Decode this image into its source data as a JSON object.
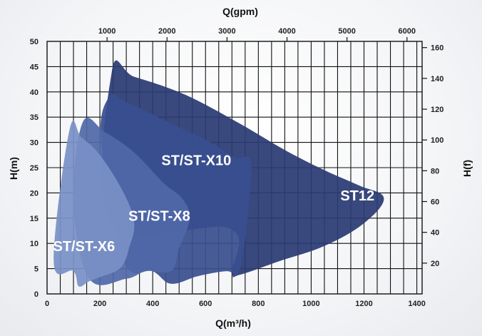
{
  "chart_data": {
    "type": "area",
    "xlabel": "Q(m³/h)",
    "x2label": "Q(gpm)",
    "ylabel": "H(m)",
    "y2label": "H(f)",
    "xlim": [
      0,
      1420
    ],
    "ylim": [
      0,
      50
    ],
    "x_ticks": [
      0,
      200,
      400,
      600,
      800,
      1000,
      1200,
      1400
    ],
    "y_ticks": [
      0,
      5,
      10,
      15,
      20,
      25,
      30,
      35,
      40,
      45,
      50
    ],
    "x2_ticks": [
      1000,
      2000,
      3000,
      4000,
      5000,
      6000
    ],
    "y2_ticks": [
      20,
      40,
      60,
      80,
      100,
      120,
      140,
      160
    ],
    "grid": true,
    "series": [
      {
        "name": "ST12",
        "color": "#2a3a73",
        "label_at": [
          1175,
          18.5
        ],
        "points": [
          [
            245,
            44
          ],
          [
            330,
            43
          ],
          [
            520,
            39.5
          ],
          [
            720,
            34
          ],
          [
            900,
            28.5
          ],
          [
            1050,
            24.5
          ],
          [
            1180,
            21.5
          ],
          [
            1275,
            19
          ],
          [
            1200,
            14
          ],
          [
            1050,
            9.5
          ],
          [
            880,
            6.5
          ],
          [
            730,
            3.8
          ],
          [
            700,
            4.3
          ],
          [
            690,
            13
          ],
          [
            245,
            14
          ]
        ]
      },
      {
        "name": "ST/ST-X10",
        "color": "#394f8f",
        "label_at": [
          565,
          25.5
        ],
        "points": [
          [
            235,
            39
          ],
          [
            300,
            38
          ],
          [
            460,
            34
          ],
          [
            620,
            30
          ],
          [
            710,
            27
          ],
          [
            770,
            26.5
          ],
          [
            765,
            18
          ],
          [
            745,
            9
          ],
          [
            720,
            3.8
          ],
          [
            680,
            4.5
          ],
          [
            570,
            3.5
          ],
          [
            470,
            2
          ],
          [
            400,
            4.5
          ],
          [
            290,
            6.5
          ],
          [
            205,
            30
          ]
        ]
      },
      {
        "name": "ST/ST-X8",
        "color": "#5068a8",
        "label_at": [
          425,
          14.5
        ],
        "points": [
          [
            135,
            34
          ],
          [
            220,
            32
          ],
          [
            330,
            28
          ],
          [
            440,
            22
          ],
          [
            510,
            19
          ],
          [
            540,
            15
          ],
          [
            500,
            9
          ],
          [
            470,
            4.5
          ],
          [
            375,
            4.5
          ],
          [
            300,
            3
          ],
          [
            160,
            3
          ],
          [
            100,
            18
          ]
        ]
      },
      {
        "name": "ST/ST-X6",
        "color": "#7a90c6",
        "label_at": [
          140,
          8.5
        ],
        "points": [
          [
            85,
            32.5
          ],
          [
            130,
            31
          ],
          [
            200,
            27.5
          ],
          [
            290,
            20
          ],
          [
            330,
            14
          ],
          [
            310,
            9
          ],
          [
            290,
            6
          ],
          [
            260,
            4.5
          ],
          [
            210,
            3.5
          ],
          [
            160,
            2.5
          ],
          [
            120,
            1.5
          ],
          [
            100,
            4.5
          ],
          [
            25,
            6.5
          ]
        ]
      }
    ]
  }
}
